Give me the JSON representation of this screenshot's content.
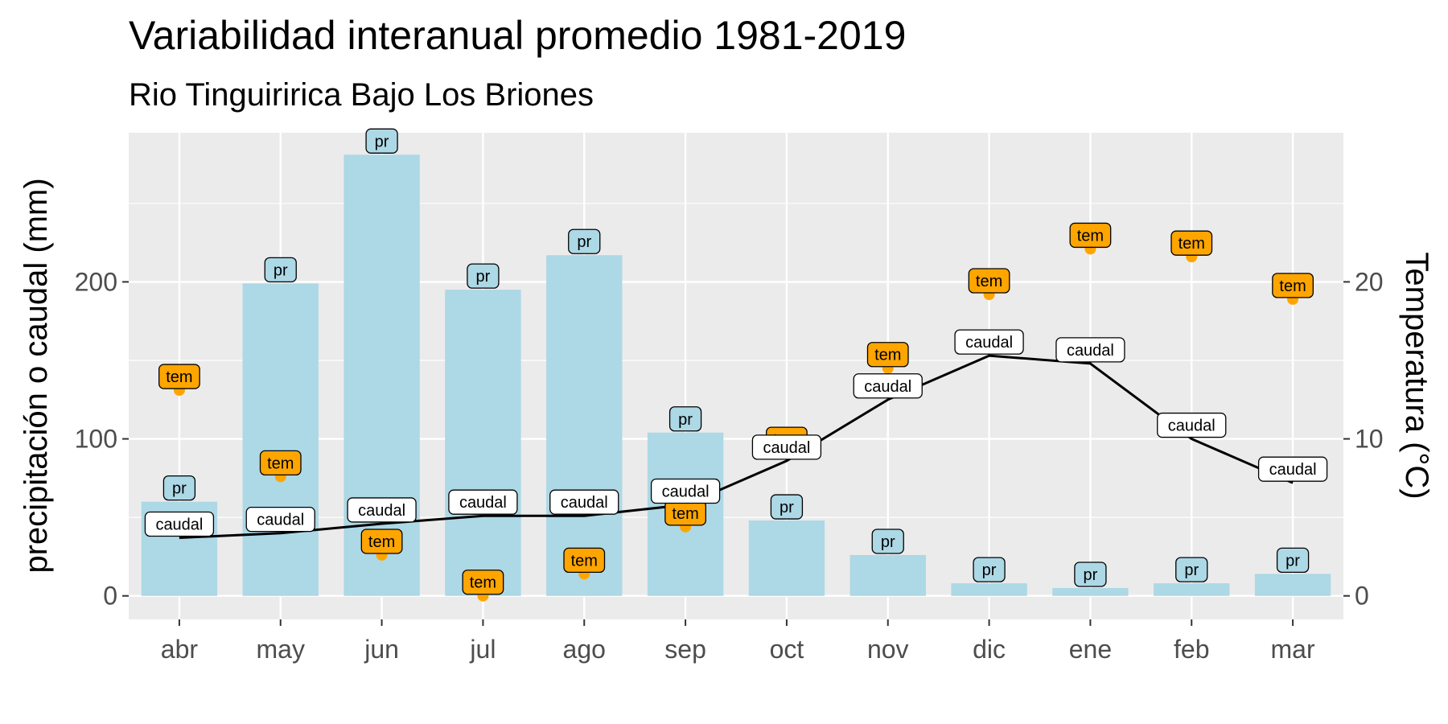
{
  "chart_data": {
    "type": "bar",
    "title": "Variabilidad interanual promedio 1981-2019",
    "subtitle": "Rio Tinguiririca Bajo Los Briones",
    "ylabel": "precipitación o caudal (mm)",
    "y2label": "Temperatura (°C)",
    "categories": [
      "abr",
      "may",
      "jun",
      "jul",
      "ago",
      "sep",
      "oct",
      "nov",
      "dic",
      "ene",
      "feb",
      "mar"
    ],
    "ylim": [
      -15,
      295
    ],
    "y2lim": [
      -1.5,
      29.5
    ],
    "yticks": [
      0,
      100,
      200
    ],
    "y2ticks": [
      0,
      10,
      20
    ],
    "grid": true,
    "legend": "none",
    "series": [
      {
        "key": "pr",
        "label": "pr",
        "type": "bar",
        "axis": "left",
        "color": "#add8e6",
        "values": [
          60,
          199,
          281,
          195,
          217,
          104,
          48,
          26,
          8,
          5,
          8,
          14
        ]
      },
      {
        "key": "caudal",
        "label": "caudal",
        "type": "line",
        "axis": "left",
        "color": "#000000",
        "values": [
          37,
          40,
          46,
          51,
          51,
          58,
          86,
          125,
          153,
          148,
          100,
          72
        ]
      },
      {
        "key": "tem",
        "label": "tem",
        "type": "scatter",
        "axis": "right",
        "color": "#ffa500",
        "values": [
          13.1,
          7.6,
          2.6,
          0.0,
          1.4,
          4.4,
          9.1,
          14.5,
          19.2,
          22.1,
          21.6,
          18.9
        ]
      }
    ]
  }
}
